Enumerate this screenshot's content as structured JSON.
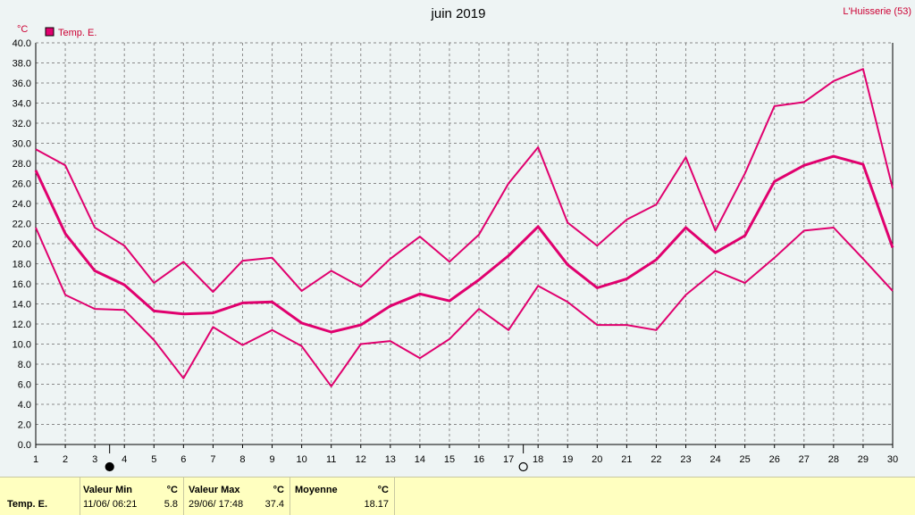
{
  "header": {
    "title": "juin 2019",
    "station": "L'Huisserie (53)",
    "unit": "°C",
    "legend_label": "Temp. E."
  },
  "colors": {
    "series": "#e0006e",
    "unit_text": "#cc0033",
    "background": "#eef4f4",
    "footer_bg": "#ffffc0"
  },
  "chart_data": {
    "type": "line",
    "title": "juin 2019",
    "ylabel": "°C",
    "ylim": [
      0,
      40
    ],
    "yticks": [
      "0.0",
      "2.0",
      "4.0",
      "6.0",
      "8.0",
      "10.0",
      "12.0",
      "14.0",
      "16.0",
      "18.0",
      "20.0",
      "22.0",
      "24.0",
      "26.0",
      "28.0",
      "30.0",
      "32.0",
      "34.0",
      "36.0",
      "38.0",
      "40.0"
    ],
    "x": [
      1,
      2,
      3,
      4,
      5,
      6,
      7,
      8,
      9,
      10,
      11,
      12,
      13,
      14,
      15,
      16,
      17,
      18,
      19,
      20,
      21,
      22,
      23,
      24,
      25,
      26,
      27,
      28,
      29,
      30
    ],
    "grid": true,
    "moon_phases": [
      {
        "day": 3.5,
        "phase": "new-moon"
      },
      {
        "day": 17.5,
        "phase": "full-moon"
      }
    ],
    "series": [
      {
        "name": "Temp. E.",
        "role": "max",
        "values": [
          29.4,
          27.8,
          21.6,
          19.8,
          16.1,
          18.2,
          15.2,
          18.3,
          18.6,
          15.3,
          17.3,
          15.7,
          18.5,
          20.7,
          18.2,
          20.9,
          26.0,
          29.6,
          22.1,
          19.8,
          22.4,
          23.9,
          28.6,
          21.3,
          27.0,
          33.7,
          34.1,
          36.2,
          37.4,
          25.5
        ]
      },
      {
        "name": "Temp. E.",
        "role": "mean",
        "values": [
          27.3,
          21.0,
          17.3,
          15.9,
          13.3,
          13.0,
          13.1,
          14.1,
          14.2,
          12.1,
          11.2,
          11.9,
          13.8,
          15.0,
          14.3,
          16.4,
          18.8,
          21.7,
          17.9,
          15.6,
          16.5,
          18.4,
          21.6,
          19.1,
          20.8,
          26.2,
          27.8,
          28.7,
          27.9,
          19.6
        ]
      },
      {
        "name": "Temp. E.",
        "role": "min",
        "values": [
          21.6,
          14.9,
          13.5,
          13.4,
          10.4,
          6.6,
          11.7,
          9.9,
          11.4,
          9.8,
          5.8,
          10.0,
          10.3,
          8.6,
          10.5,
          13.5,
          11.4,
          15.8,
          14.2,
          11.9,
          11.9,
          11.4,
          14.9,
          17.3,
          16.1,
          18.6,
          21.3,
          21.6,
          18.5,
          15.3
        ]
      }
    ]
  },
  "summary": {
    "row_label": "Temp. E.",
    "min_header": "Valeur Min",
    "min_unit": "°C",
    "min_datetime": "11/06/  06:21",
    "min_value": "5.8",
    "max_header": "Valeur Max",
    "max_unit": "°C",
    "max_datetime": "29/06/  17:48",
    "max_value": "37.4",
    "mean_header": "Moyenne",
    "mean_unit": "°C",
    "mean_value": "18.17"
  }
}
